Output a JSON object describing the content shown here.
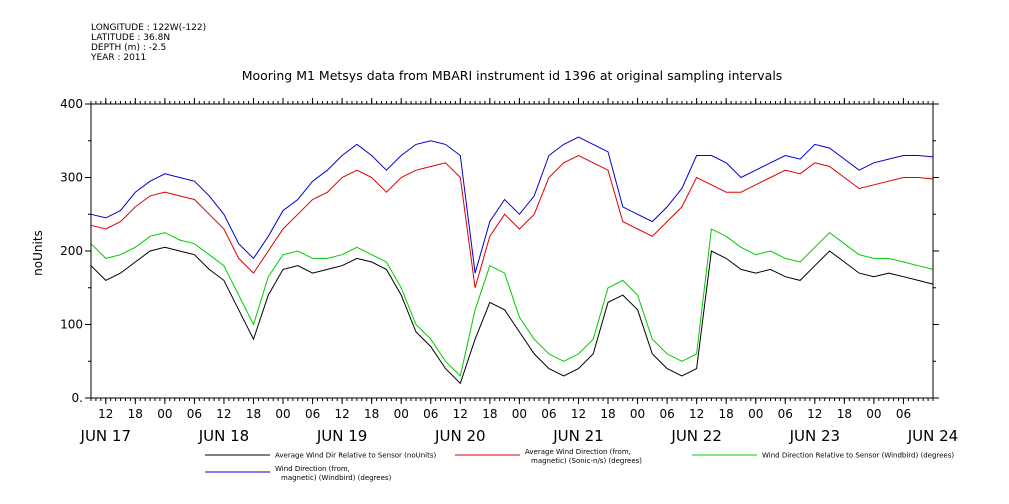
{
  "header": {
    "lines": [
      "LONGITUDE : 122W(-122)",
      "LATITUDE : 36.8N",
      "DEPTH (m) : -2.5",
      "YEAR : 2011"
    ]
  },
  "chart_data": {
    "type": "line",
    "title": "Mooring M1 Metsys data from MBARI instrument id 1396 at original sampling intervals",
    "ylabel": "noUnits",
    "xlim": [
      "2011-06-17T09:00",
      "2011-06-24T12:00"
    ],
    "ylim": [
      0,
      400
    ],
    "y_ticks": [
      0,
      100,
      200,
      300,
      400
    ],
    "y_tick_labels": [
      "0.",
      "100",
      "200",
      "300",
      "400"
    ],
    "x_hour_ticks": [
      {
        "t": "2011-06-17T12:00",
        "label": "12"
      },
      {
        "t": "2011-06-17T18:00",
        "label": "18"
      },
      {
        "t": "2011-06-18T00:00",
        "label": "00"
      },
      {
        "t": "2011-06-18T06:00",
        "label": "06"
      },
      {
        "t": "2011-06-18T12:00",
        "label": "12"
      },
      {
        "t": "2011-06-18T18:00",
        "label": "18"
      },
      {
        "t": "2011-06-19T00:00",
        "label": "00"
      },
      {
        "t": "2011-06-19T06:00",
        "label": "06"
      },
      {
        "t": "2011-06-19T12:00",
        "label": "12"
      },
      {
        "t": "2011-06-19T18:00",
        "label": "18"
      },
      {
        "t": "2011-06-20T00:00",
        "label": "00"
      },
      {
        "t": "2011-06-20T06:00",
        "label": "06"
      },
      {
        "t": "2011-06-20T12:00",
        "label": "12"
      },
      {
        "t": "2011-06-20T18:00",
        "label": "18"
      },
      {
        "t": "2011-06-21T00:00",
        "label": "00"
      },
      {
        "t": "2011-06-21T06:00",
        "label": "06"
      },
      {
        "t": "2011-06-21T12:00",
        "label": "12"
      },
      {
        "t": "2011-06-21T18:00",
        "label": "18"
      },
      {
        "t": "2011-06-22T00:00",
        "label": "00"
      },
      {
        "t": "2011-06-22T06:00",
        "label": "06"
      },
      {
        "t": "2011-06-22T12:00",
        "label": "12"
      },
      {
        "t": "2011-06-22T18:00",
        "label": "18"
      },
      {
        "t": "2011-06-23T00:00",
        "label": "00"
      },
      {
        "t": "2011-06-23T06:00",
        "label": "06"
      },
      {
        "t": "2011-06-23T12:00",
        "label": "12"
      },
      {
        "t": "2011-06-23T18:00",
        "label": "18"
      },
      {
        "t": "2011-06-24T00:00",
        "label": "00"
      },
      {
        "t": "2011-06-24T06:00",
        "label": "06"
      }
    ],
    "x_day_labels": [
      {
        "t": "2011-06-17T12:00",
        "label": "JUN 17"
      },
      {
        "t": "2011-06-18T12:00",
        "label": "JUN 18"
      },
      {
        "t": "2011-06-19T12:00",
        "label": "JUN 19"
      },
      {
        "t": "2011-06-20T12:00",
        "label": "JUN 20"
      },
      {
        "t": "2011-06-21T12:00",
        "label": "JUN 21"
      },
      {
        "t": "2011-06-22T12:00",
        "label": "JUN 22"
      },
      {
        "t": "2011-06-23T12:00",
        "label": "JUN 23"
      },
      {
        "t": "2011-06-24T12:00",
        "label": "JUN 24"
      }
    ],
    "x": [
      "2011-06-17T09:00",
      "2011-06-17T12:00",
      "2011-06-17T15:00",
      "2011-06-17T18:00",
      "2011-06-17T21:00",
      "2011-06-18T00:00",
      "2011-06-18T03:00",
      "2011-06-18T06:00",
      "2011-06-18T09:00",
      "2011-06-18T12:00",
      "2011-06-18T15:00",
      "2011-06-18T18:00",
      "2011-06-18T21:00",
      "2011-06-19T00:00",
      "2011-06-19T03:00",
      "2011-06-19T06:00",
      "2011-06-19T09:00",
      "2011-06-19T12:00",
      "2011-06-19T15:00",
      "2011-06-19T18:00",
      "2011-06-19T21:00",
      "2011-06-20T00:00",
      "2011-06-20T03:00",
      "2011-06-20T06:00",
      "2011-06-20T09:00",
      "2011-06-20T12:00",
      "2011-06-20T15:00",
      "2011-06-20T18:00",
      "2011-06-20T21:00",
      "2011-06-21T00:00",
      "2011-06-21T03:00",
      "2011-06-21T06:00",
      "2011-06-21T09:00",
      "2011-06-21T12:00",
      "2011-06-21T15:00",
      "2011-06-21T18:00",
      "2011-06-21T21:00",
      "2011-06-22T00:00",
      "2011-06-22T03:00",
      "2011-06-22T06:00",
      "2011-06-22T09:00",
      "2011-06-22T12:00",
      "2011-06-22T15:00",
      "2011-06-22T18:00",
      "2011-06-22T21:00",
      "2011-06-23T00:00",
      "2011-06-23T03:00",
      "2011-06-23T06:00",
      "2011-06-23T09:00",
      "2011-06-23T12:00",
      "2011-06-23T15:00",
      "2011-06-23T18:00",
      "2011-06-23T21:00",
      "2011-06-24T00:00",
      "2011-06-24T03:00",
      "2011-06-24T06:00",
      "2011-06-24T09:00",
      "2011-06-24T12:00"
    ],
    "series": [
      {
        "name": "Average Wind Dir Relative to Sensor (noUnits)",
        "color": "#000000",
        "values": [
          180,
          160,
          170,
          185,
          200,
          205,
          200,
          195,
          175,
          160,
          120,
          80,
          140,
          175,
          180,
          170,
          175,
          180,
          190,
          185,
          175,
          140,
          90,
          70,
          40,
          20,
          80,
          130,
          120,
          90,
          60,
          40,
          30,
          40,
          60,
          130,
          140,
          120,
          60,
          40,
          30,
          40,
          200,
          190,
          175,
          170,
          175,
          165,
          160,
          180,
          200,
          185,
          170,
          165,
          170,
          165,
          160,
          155
        ]
      },
      {
        "name": "Average Wind Direction (from, magnetic) (Sonic-n/s) (degrees)",
        "color": "#dd0000",
        "values": [
          235,
          230,
          240,
          260,
          275,
          280,
          275,
          270,
          250,
          230,
          190,
          170,
          200,
          230,
          250,
          270,
          280,
          300,
          310,
          300,
          280,
          300,
          310,
          315,
          320,
          300,
          150,
          220,
          250,
          230,
          250,
          300,
          320,
          330,
          320,
          310,
          240,
          230,
          220,
          240,
          260,
          300,
          290,
          280,
          280,
          290,
          300,
          310,
          305,
          320,
          315,
          300,
          285,
          290,
          295,
          300,
          300,
          298
        ]
      },
      {
        "name": "Wind Direction Relative to Sensor (Windbird) (degrees)",
        "color": "#00cc00",
        "values": [
          210,
          190,
          195,
          205,
          220,
          225,
          215,
          210,
          195,
          180,
          140,
          100,
          165,
          195,
          200,
          190,
          190,
          195,
          205,
          195,
          185,
          150,
          100,
          80,
          50,
          30,
          120,
          180,
          170,
          110,
          80,
          60,
          50,
          60,
          80,
          150,
          160,
          140,
          80,
          60,
          50,
          60,
          230,
          220,
          205,
          195,
          200,
          190,
          185,
          205,
          225,
          210,
          195,
          190,
          190,
          185,
          180,
          175
        ]
      },
      {
        "name": "Wind Direction (from, magnetic) (Windbird) (degrees)",
        "color": "#0000cc",
        "values": [
          250,
          245,
          255,
          280,
          295,
          305,
          300,
          295,
          275,
          250,
          210,
          190,
          220,
          255,
          270,
          295,
          310,
          330,
          345,
          330,
          310,
          330,
          345,
          350,
          345,
          330,
          170,
          240,
          270,
          250,
          275,
          330,
          345,
          355,
          345,
          335,
          260,
          250,
          240,
          260,
          285,
          330,
          330,
          320,
          300,
          310,
          320,
          330,
          325,
          345,
          340,
          325,
          310,
          320,
          325,
          330,
          330,
          328
        ]
      }
    ],
    "legend": {
      "placement": "bottom",
      "entries": [
        {
          "line1": "Average Wind Dir Relative to Sensor (noUnits)",
          "line2": "",
          "color": "#000000"
        },
        {
          "line1": "Average Wind Direction (from,",
          "line2": "magnetic) (Sonic-n/s) (degrees)",
          "color": "#dd0000"
        },
        {
          "line1": "Wind Direction Relative to Sensor (Windbird) (degrees)",
          "line2": "",
          "color": "#00cc00"
        },
        {
          "line1": "Wind Direction (from,",
          "line2": "magnetic) (Windbird) (degrees)",
          "color": "#0000cc"
        }
      ]
    }
  }
}
